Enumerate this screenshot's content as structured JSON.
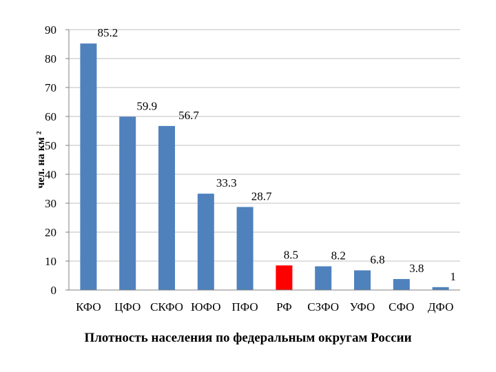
{
  "chart_data": {
    "type": "bar",
    "title": "Плотность населения по федеральным округам России",
    "ylabel": "чел. на км ²",
    "xlabel": "",
    "categories": [
      "КФО",
      "ЦФО",
      "СКФО",
      "ЮФО",
      "ПФО",
      "РФ",
      "СЗФО",
      "УФО",
      "СФО",
      "ДФО"
    ],
    "values": [
      85.2,
      59.9,
      56.7,
      33.3,
      28.7,
      8.5,
      8.2,
      6.8,
      3.8,
      1
    ],
    "data_labels": [
      "85.2",
      "59.9",
      "56.7",
      "33.3",
      "28.7",
      "8.5",
      "8.2",
      "6.8",
      "3.8",
      "1"
    ],
    "highlight_category": "РФ",
    "ylim": [
      0,
      90
    ],
    "yticks": [
      0,
      10,
      20,
      30,
      40,
      50,
      60,
      70,
      80,
      90
    ],
    "grid": true,
    "legend": "none",
    "colors": {
      "bar": "#4f81bd",
      "highlight": "#ff0000",
      "grid": "#bfbfbf",
      "axis": "#7f7f7f"
    }
  }
}
